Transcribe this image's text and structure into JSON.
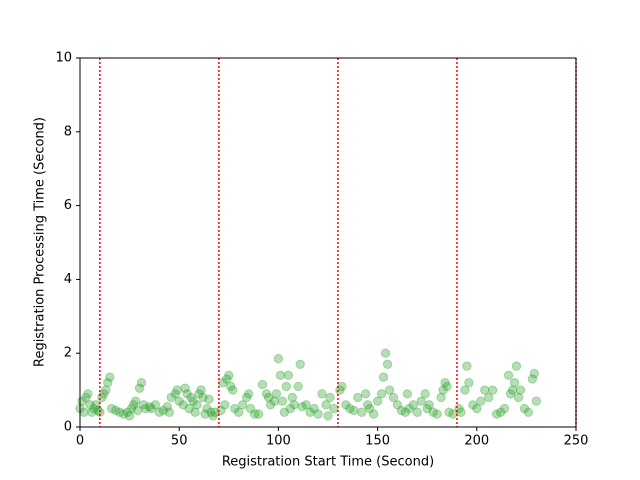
{
  "chart_data": {
    "type": "scatter",
    "xlabel": "Registration Start Time (Second)",
    "ylabel": "Registration Processing Time (Second)",
    "xlim": [
      0,
      250
    ],
    "ylim": [
      0,
      10
    ],
    "xticks": [
      0,
      50,
      100,
      150,
      200,
      250
    ],
    "yticks": [
      0,
      2,
      4,
      6,
      8,
      10
    ],
    "vlines": [
      10,
      70,
      130,
      190,
      250
    ],
    "vline_color": "#ff0000",
    "series": [
      {
        "color": "#2ca02c",
        "x": [
          0,
          1,
          2,
          3,
          4,
          5,
          6,
          7,
          8,
          9,
          10,
          11,
          12,
          13,
          14,
          15,
          16,
          18,
          20,
          22,
          24,
          25,
          26,
          27,
          28,
          29,
          30,
          31,
          32,
          33,
          35,
          36,
          38,
          40,
          42,
          44,
          45,
          46,
          48,
          49,
          50,
          52,
          53,
          54,
          55,
          56,
          57,
          58,
          59,
          60,
          61,
          62,
          63,
          64,
          65,
          66,
          67,
          68,
          71,
          72,
          73,
          74,
          75,
          76,
          77,
          78,
          80,
          82,
          84,
          85,
          86,
          88,
          90,
          92,
          94,
          95,
          96,
          98,
          99,
          100,
          101,
          102,
          103,
          104,
          105,
          106,
          107,
          108,
          110,
          111,
          112,
          114,
          116,
          118,
          120,
          122,
          124,
          125,
          126,
          128,
          131,
          132,
          134,
          136,
          138,
          140,
          142,
          144,
          145,
          146,
          148,
          150,
          152,
          153,
          154,
          155,
          156,
          158,
          160,
          162,
          164,
          165,
          166,
          168,
          170,
          172,
          174,
          175,
          176,
          178,
          180,
          182,
          183,
          184,
          185,
          186,
          188,
          191,
          192,
          194,
          195,
          196,
          198,
          200,
          202,
          204,
          206,
          208,
          210,
          212,
          214,
          216,
          217,
          218,
          219,
          220,
          221,
          222,
          224,
          226,
          228,
          229,
          230
        ],
        "values": [
          0.5,
          0.7,
          0.4,
          0.8,
          0.9,
          0.6,
          0.4,
          0.5,
          0.6,
          0.45,
          0.4,
          0.8,
          0.9,
          1.0,
          1.2,
          1.35,
          0.5,
          0.45,
          0.4,
          0.35,
          0.4,
          0.3,
          0.5,
          0.6,
          0.7,
          0.45,
          1.05,
          1.2,
          0.6,
          0.5,
          0.55,
          0.5,
          0.6,
          0.4,
          0.45,
          0.55,
          0.4,
          0.8,
          0.9,
          1.0,
          0.7,
          0.6,
          1.05,
          0.9,
          0.5,
          0.8,
          0.7,
          0.4,
          0.6,
          0.9,
          1.0,
          0.8,
          0.35,
          0.5,
          0.75,
          0.4,
          0.3,
          0.4,
          0.45,
          1.2,
          0.6,
          1.3,
          1.4,
          1.1,
          1.0,
          0.5,
          0.4,
          0.6,
          0.8,
          0.9,
          0.5,
          0.35,
          0.35,
          1.15,
          0.9,
          0.8,
          0.6,
          0.7,
          0.9,
          1.85,
          1.4,
          0.7,
          0.4,
          1.1,
          1.4,
          0.5,
          0.8,
          0.6,
          1.1,
          1.7,
          0.55,
          0.6,
          0.4,
          0.5,
          0.35,
          0.9,
          0.6,
          0.3,
          0.8,
          0.5,
          1.0,
          1.1,
          0.6,
          0.5,
          0.45,
          0.8,
          0.4,
          0.9,
          0.6,
          0.5,
          0.35,
          0.7,
          0.9,
          1.35,
          2.0,
          1.7,
          1.0,
          0.8,
          0.6,
          0.45,
          0.4,
          0.9,
          0.5,
          0.6,
          0.4,
          0.7,
          0.9,
          0.5,
          0.6,
          0.4,
          0.35,
          0.8,
          1.0,
          1.2,
          1.1,
          0.4,
          0.35,
          0.5,
          0.4,
          1.0,
          1.65,
          1.2,
          0.6,
          0.5,
          0.7,
          1.0,
          0.8,
          1.0,
          0.35,
          0.4,
          0.5,
          1.4,
          0.9,
          1.0,
          1.2,
          1.65,
          0.8,
          1.0,
          0.5,
          0.4,
          1.3,
          1.45,
          0.7
        ]
      }
    ]
  }
}
